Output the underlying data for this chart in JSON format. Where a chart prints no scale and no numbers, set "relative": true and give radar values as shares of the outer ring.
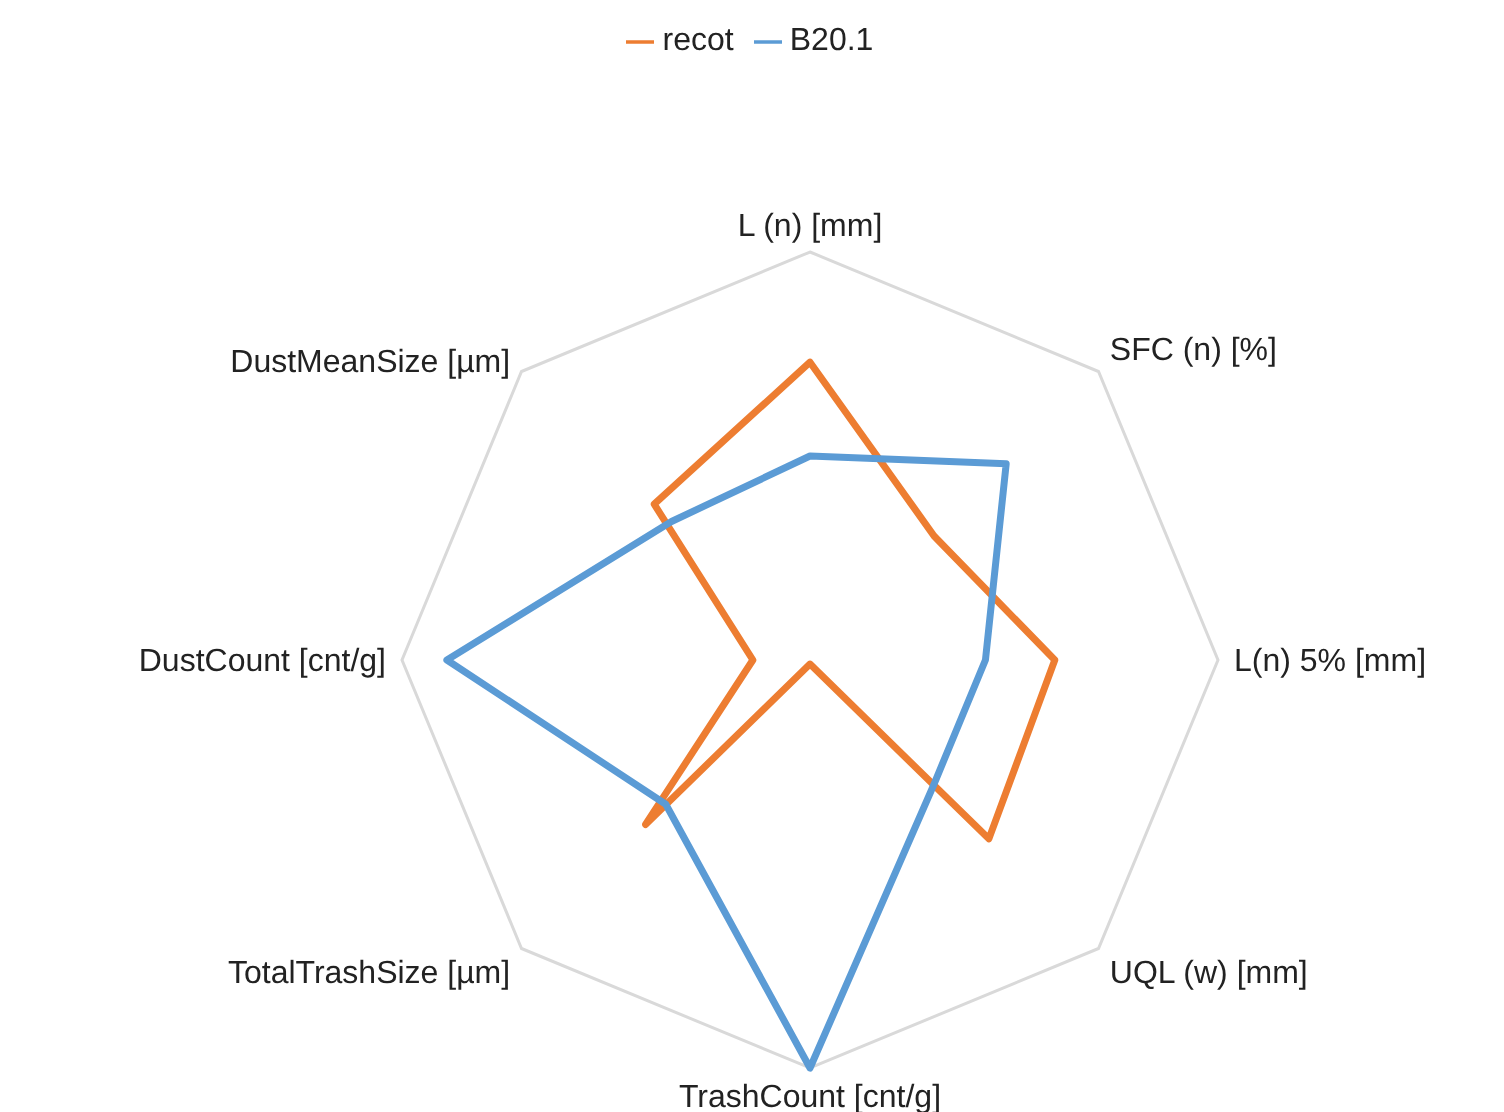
{
  "chart_data": {
    "type": "radar",
    "relative": true,
    "categories": [
      "L (n) [mm]",
      "SFC (n) [%]",
      "L(n) 5% [mm]",
      "UQL (w) [mm]",
      "TrashCount [cnt/g]",
      "TotalTrashSize [µm]",
      "DustCount [cnt/g]",
      "DustMeanSize  [µm]"
    ],
    "series": [
      {
        "name": "recot",
        "color": "#ed7d31",
        "values": [
          0.73,
          0.43,
          0.6,
          0.62,
          0.01,
          0.57,
          0.14,
          0.54
        ]
      },
      {
        "name": "B20.1",
        "color": "#5b9bd5",
        "values": [
          0.5,
          0.68,
          0.43,
          0.43,
          1.0,
          0.5,
          0.89,
          0.48
        ]
      }
    ],
    "grid": true,
    "legend": "top"
  }
}
